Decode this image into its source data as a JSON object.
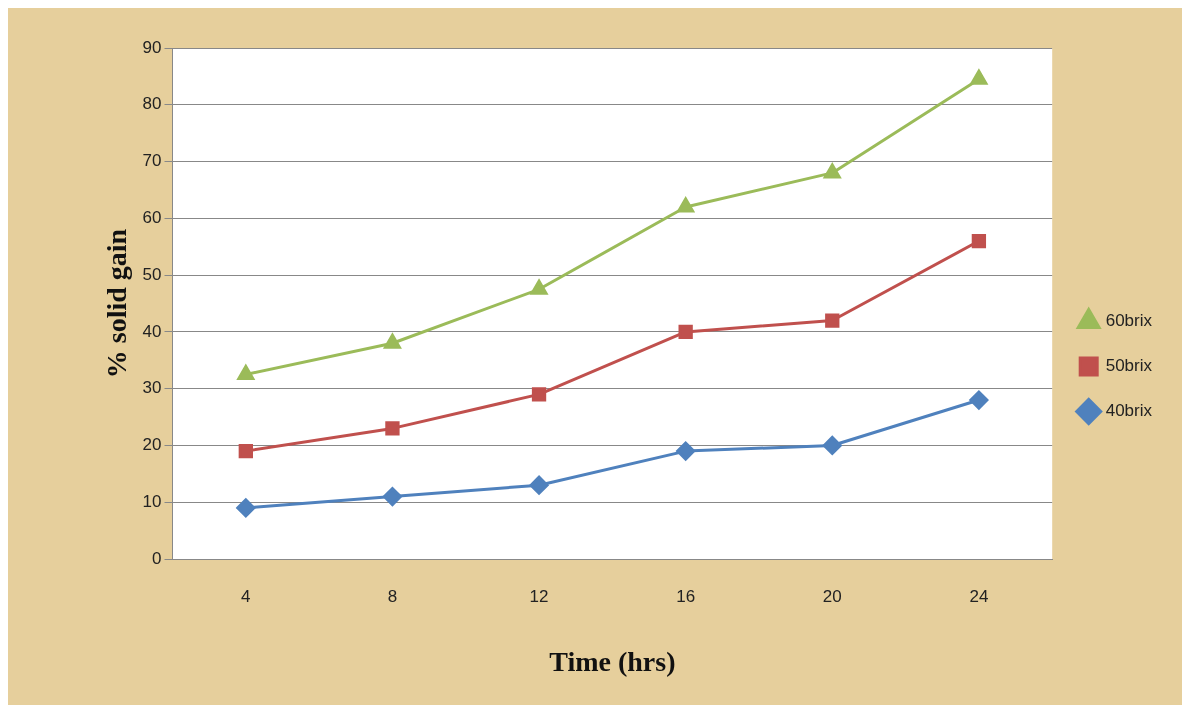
{
  "chart_data": {
    "type": "line",
    "xlabel": "Time (hrs)",
    "ylabel": "% solid gain",
    "categories": [
      "4",
      "8",
      "12",
      "16",
      "20",
      "24"
    ],
    "series": [
      {
        "name": "40brix",
        "color": "#4f81bd",
        "marker": "diamond",
        "values": [
          9,
          11,
          13,
          19,
          20,
          28
        ]
      },
      {
        "name": "50brix",
        "color": "#c0504d",
        "marker": "square",
        "values": [
          19,
          23,
          29,
          40,
          42,
          56
        ]
      },
      {
        "name": "60brix",
        "color": "#9bbb59",
        "marker": "triangle",
        "values": [
          32.5,
          38,
          47.5,
          62,
          68,
          84.5
        ]
      }
    ],
    "ylim": [
      0,
      90
    ],
    "yticks": [
      0,
      10,
      20,
      30,
      40,
      50,
      60,
      70,
      80,
      90
    ],
    "grid": "y",
    "legend": "right",
    "line_style": "solid"
  }
}
